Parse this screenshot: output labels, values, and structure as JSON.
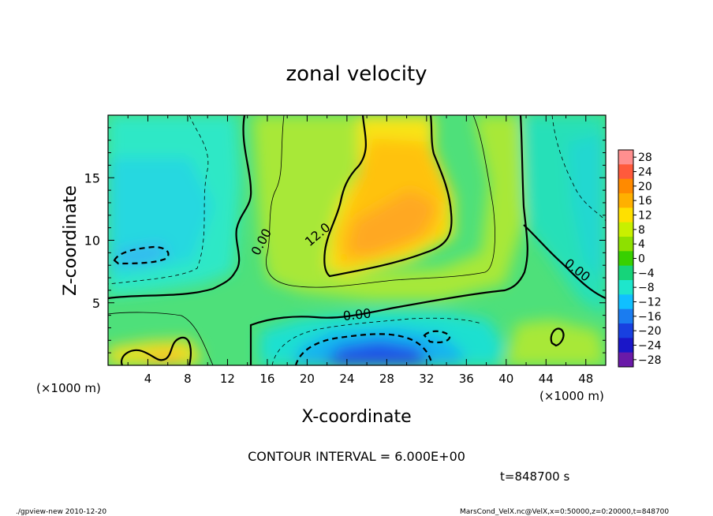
{
  "chart_data": {
    "type": "heatmap",
    "title": "zonal velocity",
    "xlabel": "X-coordinate",
    "ylabel": "Z-coordinate",
    "x_unit_label": "(×1000 m)",
    "y_unit_label": "(×1000 m)",
    "xlim": [
      0,
      50
    ],
    "ylim": [
      0,
      20
    ],
    "x_ticks": [
      4,
      8,
      12,
      16,
      20,
      24,
      28,
      32,
      36,
      40,
      44,
      48
    ],
    "y_ticks": [
      5,
      10,
      15
    ],
    "colorbar": {
      "levels": [
        28,
        24,
        20,
        16,
        12,
        8,
        4,
        0,
        -4,
        -8,
        -12,
        -16,
        -20,
        -24,
        -28
      ],
      "colors": [
        "#ff8f8f",
        "#ff5a3c",
        "#ff8a00",
        "#ffb000",
        "#ffe000",
        "#c8f000",
        "#8ee000",
        "#38d000",
        "#16d47a",
        "#1ee6cc",
        "#10c0ff",
        "#1a7cf0",
        "#1840e0",
        "#1a16c8",
        "#6a1aa8"
      ]
    },
    "contour_labels": [
      "0.00",
      "12.0",
      "0.00",
      "0.00"
    ],
    "contour_interval_text": "CONTOUR INTERVAL = 6.000E+00",
    "time_text": "t=848700 s"
  },
  "footer": {
    "left": "./gpview-new  2010-12-20",
    "right": "MarsCond_VelX.nc@VelX,x=0:50000,z=0:20000,t=848700"
  }
}
